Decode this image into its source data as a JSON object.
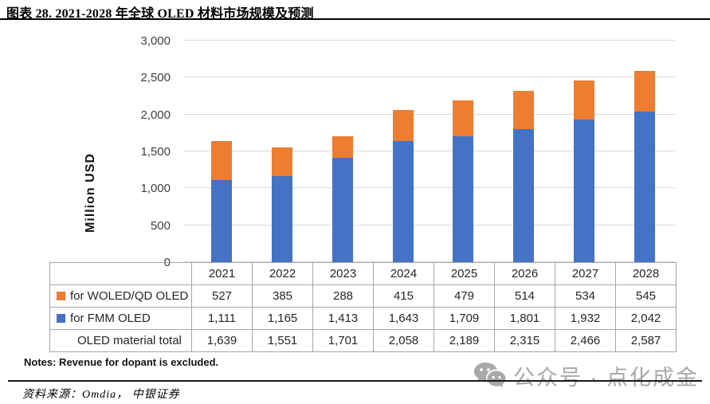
{
  "header": {
    "title": "图表 28. 2021-2028 年全球 OLED 材料市场规模及预测"
  },
  "chart_data": {
    "type": "bar",
    "stacked": true,
    "ylabel": "Million USD",
    "ylim": [
      0,
      3000
    ],
    "grid": true,
    "legend_position": "table-below-chart",
    "ytick_values": [
      0,
      500,
      1000,
      1500,
      2000,
      2500,
      3000
    ],
    "ytick_labels": [
      "0",
      "500",
      "1,000",
      "1,500",
      "2,000",
      "2,500",
      "3,000"
    ],
    "categories": [
      "2021",
      "2022",
      "2023",
      "2024",
      "2025",
      "2026",
      "2027",
      "2028"
    ],
    "series": [
      {
        "name": "for WOLED/QD OLED",
        "color": "#ED7D31",
        "values": [
          527,
          385,
          288,
          415,
          479,
          514,
          534,
          545
        ]
      },
      {
        "name": "for FMM OLED",
        "color": "#4472C4",
        "values": [
          1111,
          1165,
          1413,
          1643,
          1709,
          1801,
          1932,
          2042
        ]
      }
    ],
    "totals": {
      "name": "OLED material total",
      "values": [
        1639,
        1551,
        1701,
        2058,
        2189,
        2315,
        2466,
        2587
      ]
    }
  },
  "table": {
    "header_row": [
      "2021",
      "2022",
      "2023",
      "2024",
      "2025",
      "2026",
      "2027",
      "2028"
    ],
    "rows": [
      {
        "label": "for WOLED/QD OLED",
        "marker_color": "#ED7D31",
        "cells": [
          "527",
          "385",
          "288",
          "415",
          "479",
          "514",
          "534",
          "545"
        ]
      },
      {
        "label": "for FMM OLED",
        "marker_color": "#4472C4",
        "cells": [
          "1,111",
          "1,165",
          "1,413",
          "1,643",
          "1,709",
          "1,801",
          "1,932",
          "2,042"
        ]
      },
      {
        "label": "OLED material total",
        "marker_color": null,
        "cells": [
          "1,639",
          "1,551",
          "1,701",
          "2,058",
          "2,189",
          "2,315",
          "2,466",
          "2,587"
        ]
      }
    ]
  },
  "notes": "Notes: Revenue for dopant is excluded.",
  "source": "资料来源：Omdia，  中银证券",
  "watermark": {
    "icon": "wechat-icon",
    "text": "公众号 · 点化成金"
  },
  "colors": {
    "bar_blue": "#4472C4",
    "bar_orange": "#ED7D31",
    "gridline": "#d9d9d9",
    "table_border": "#a6a6a6",
    "watermark_gray": "#a9a9a9"
  }
}
